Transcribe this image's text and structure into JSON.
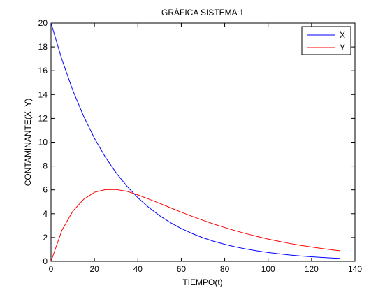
{
  "chart_data": {
    "type": "line",
    "title": "GRÁFICA SISTEMA 1",
    "xlabel": "TIEMPO(t)",
    "ylabel": "CONTAMINANTE(X, Y)",
    "xlim": [
      0,
      140
    ],
    "ylim": [
      0,
      20
    ],
    "xticks": [
      0,
      20,
      40,
      60,
      80,
      100,
      120,
      140
    ],
    "yticks": [
      0,
      2,
      4,
      6,
      8,
      10,
      12,
      14,
      16,
      18,
      20
    ],
    "grid": false,
    "legend": "top-right",
    "series": [
      {
        "name": "X",
        "color": "#0000ff",
        "x": [
          0,
          5,
          10,
          15,
          20,
          25,
          30,
          35,
          40,
          45,
          50,
          55,
          60,
          65,
          70,
          75,
          80,
          85,
          90,
          95,
          100,
          105,
          110,
          115,
          120,
          125,
          130,
          133
        ],
        "y": [
          20.0,
          16.95,
          14.37,
          12.19,
          10.33,
          8.76,
          7.43,
          6.3,
          5.34,
          4.53,
          3.84,
          3.25,
          2.76,
          2.34,
          1.98,
          1.68,
          1.43,
          1.21,
          1.03,
          0.87,
          0.74,
          0.63,
          0.53,
          0.45,
          0.38,
          0.32,
          0.27,
          0.25
        ]
      },
      {
        "name": "Y",
        "color": "#ff0000",
        "x": [
          0,
          5,
          10,
          15,
          20,
          25,
          30,
          35,
          40,
          45,
          50,
          55,
          60,
          65,
          70,
          75,
          80,
          85,
          90,
          95,
          100,
          105,
          110,
          115,
          120,
          125,
          130,
          133
        ],
        "y": [
          0.0,
          2.6,
          4.2,
          5.2,
          5.8,
          6.02,
          6.03,
          5.88,
          5.58,
          5.23,
          4.87,
          4.5,
          4.13,
          3.78,
          3.45,
          3.13,
          2.84,
          2.57,
          2.32,
          2.09,
          1.87,
          1.68,
          1.5,
          1.34,
          1.2,
          1.07,
          0.95,
          0.89
        ]
      }
    ]
  }
}
